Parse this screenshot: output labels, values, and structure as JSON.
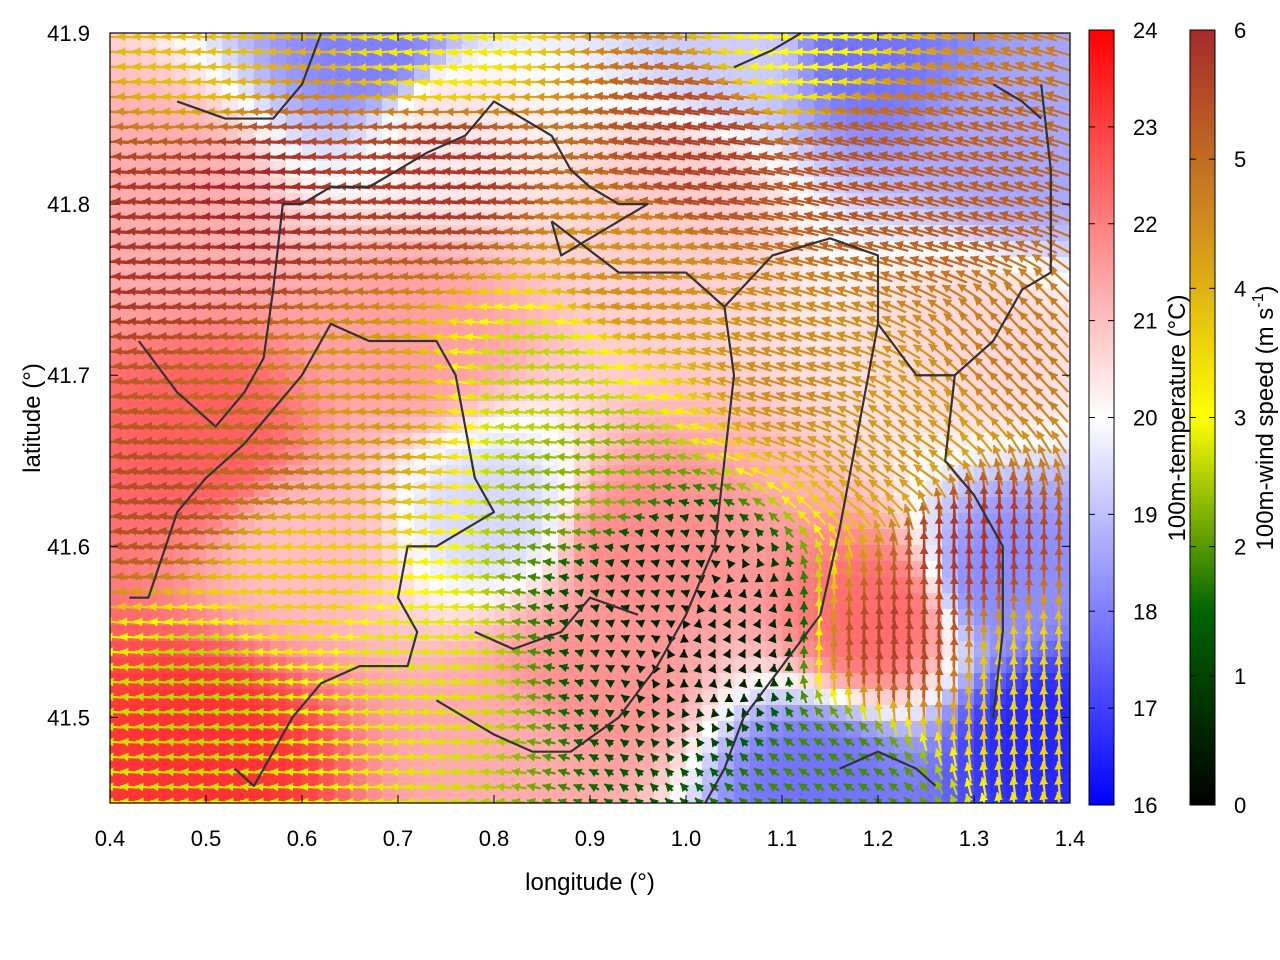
{
  "chart_data": {
    "type": "heatmap",
    "xlabel": "longitude (°)",
    "ylabel": "latitude (°)",
    "xlim": [
      0.4,
      1.4
    ],
    "ylim": [
      41.45,
      41.9
    ],
    "x_ticks": [
      "0.4",
      "0.5",
      "0.6",
      "0.7",
      "0.8",
      "0.9",
      "1.0",
      "1.1",
      "1.2",
      "1.3",
      "1.4"
    ],
    "y_ticks": [
      "41.5",
      "41.6",
      "41.7",
      "41.8",
      "41.9"
    ],
    "grid": false,
    "temperature_colorbar": {
      "label": "100m-temperature (°C)",
      "range": [
        16,
        24
      ],
      "ticks": [
        "16",
        "17",
        "18",
        "19",
        "20",
        "21",
        "22",
        "23",
        "24"
      ],
      "colors": [
        "#0000ff",
        "#ffffff",
        "#ff0000"
      ]
    },
    "wind_colorbar": {
      "label": "100m-wind speed (m s",
      "unit_sup": "-1",
      "label_end": ")",
      "range": [
        0,
        6
      ],
      "ticks": [
        "0",
        "1",
        "2",
        "3",
        "4",
        "5",
        "6"
      ],
      "colors": [
        "#000000",
        "#006400",
        "#ffff00",
        "#d08c1e",
        "#a52a2a"
      ]
    },
    "temperature_regions": [
      {
        "lon": 0.5,
        "lat": 41.66,
        "temp": 22.5
      },
      {
        "lon": 0.5,
        "lat": 41.48,
        "temp": 23.2
      },
      {
        "lon": 0.95,
        "lat": 41.6,
        "temp": 21.8
      },
      {
        "lon": 1.2,
        "lat": 41.56,
        "temp": 22.3
      },
      {
        "lon": 0.6,
        "lat": 41.6,
        "temp": 21.0
      },
      {
        "lon": 0.72,
        "lat": 41.72,
        "temp": 21.5
      },
      {
        "lon": 0.75,
        "lat": 41.85,
        "temp": 20.4
      },
      {
        "lon": 0.68,
        "lat": 41.89,
        "temp": 18.0
      },
      {
        "lon": 1.0,
        "lat": 41.8,
        "temp": 20.8
      },
      {
        "lon": 1.06,
        "lat": 41.89,
        "temp": 19.2
      },
      {
        "lon": 1.18,
        "lat": 41.89,
        "temp": 17.8
      },
      {
        "lon": 1.35,
        "lat": 41.83,
        "temp": 18.6
      },
      {
        "lon": 1.33,
        "lat": 41.58,
        "temp": 18.2
      },
      {
        "lon": 1.38,
        "lat": 41.49,
        "temp": 16.6
      },
      {
        "lon": 1.14,
        "lat": 41.46,
        "temp": 17.8
      },
      {
        "lon": 0.8,
        "lat": 41.62,
        "temp": 19.4
      },
      {
        "lon": 0.9,
        "lat": 41.52,
        "temp": 21.7
      },
      {
        "lon": 0.82,
        "lat": 41.48,
        "temp": 21.3
      },
      {
        "lon": 1.3,
        "lat": 41.72,
        "temp": 20.6
      },
      {
        "lon": 0.45,
        "lat": 41.8,
        "temp": 21.3
      }
    ],
    "wind_regions": [
      {
        "lon": 0.45,
        "lat": 41.78,
        "u": -5.8,
        "v": 0.4
      },
      {
        "lon": 0.55,
        "lat": 41.8,
        "u": -6.0,
        "v": 0.3
      },
      {
        "lon": 0.75,
        "lat": 41.82,
        "u": -5.8,
        "v": 0.5
      },
      {
        "lon": 1.02,
        "lat": 41.83,
        "u": -5.6,
        "v": 0.9
      },
      {
        "lon": 1.18,
        "lat": 41.82,
        "u": -5.2,
        "v": 1.2
      },
      {
        "lon": 1.3,
        "lat": 41.8,
        "u": -5.0,
        "v": 1.4
      },
      {
        "lon": 1.36,
        "lat": 41.72,
        "u": -3.2,
        "v": 3.5
      },
      {
        "lon": 1.3,
        "lat": 41.6,
        "u": 0.2,
        "v": 5.8
      },
      {
        "lon": 1.22,
        "lat": 41.54,
        "u": 0.3,
        "v": 5.6
      },
      {
        "lon": 1.36,
        "lat": 41.52,
        "u": -0.3,
        "v": 3.5
      },
      {
        "lon": 0.45,
        "lat": 41.63,
        "u": -5.4,
        "v": 0.6
      },
      {
        "lon": 0.55,
        "lat": 41.66,
        "u": -5.0,
        "v": 0.7
      },
      {
        "lon": 0.65,
        "lat": 41.68,
        "u": -4.3,
        "v": 0.4
      },
      {
        "lon": 0.85,
        "lat": 41.7,
        "u": -2.6,
        "v": 0.3
      },
      {
        "lon": 0.9,
        "lat": 41.64,
        "u": -2.3,
        "v": 0.2
      },
      {
        "lon": 0.97,
        "lat": 41.58,
        "u": -0.6,
        "v": 0.2
      },
      {
        "lon": 1.05,
        "lat": 41.55,
        "u": 0.2,
        "v": 0.4
      },
      {
        "lon": 0.5,
        "lat": 41.52,
        "u": -2.6,
        "v": 0.2
      },
      {
        "lon": 0.7,
        "lat": 41.53,
        "u": -2.8,
        "v": 0.1
      },
      {
        "lon": 0.6,
        "lat": 41.58,
        "u": -3.6,
        "v": 0.3
      },
      {
        "lon": 1.16,
        "lat": 41.47,
        "u": -1.6,
        "v": 1.0
      },
      {
        "lon": 0.75,
        "lat": 41.89,
        "u": -3.2,
        "v": -0.4
      },
      {
        "lon": 0.5,
        "lat": 41.89,
        "u": -3.8,
        "v": 0.3
      },
      {
        "lon": 1.12,
        "lat": 41.89,
        "u": -3.0,
        "v": 0.2
      },
      {
        "lon": 0.95,
        "lat": 41.76,
        "u": -4.4,
        "v": 0.6
      },
      {
        "lon": 1.12,
        "lat": 41.7,
        "u": -4.3,
        "v": 1.3
      },
      {
        "lon": 1.22,
        "lat": 41.66,
        "u": -3.6,
        "v": 2.4
      }
    ],
    "coastline": [
      [
        [
          0.42,
          41.57
        ],
        [
          0.44,
          41.57
        ],
        [
          0.47,
          41.62
        ],
        [
          0.5,
          41.64
        ],
        [
          0.54,
          41.66
        ],
        [
          0.57,
          41.68
        ],
        [
          0.6,
          41.7
        ],
        [
          0.63,
          41.73
        ],
        [
          0.67,
          41.72
        ],
        [
          0.7,
          41.72
        ],
        [
          0.74,
          41.72
        ],
        [
          0.76,
          41.7
        ],
        [
          0.78,
          41.64
        ],
        [
          0.8,
          41.62
        ],
        [
          0.74,
          41.6
        ],
        [
          0.71,
          41.6
        ],
        [
          0.7,
          41.57
        ],
        [
          0.72,
          41.55
        ],
        [
          0.71,
          41.53
        ],
        [
          0.66,
          41.53
        ],
        [
          0.62,
          41.52
        ],
        [
          0.59,
          41.5
        ],
        [
          0.57,
          41.48
        ],
        [
          0.55,
          41.46
        ],
        [
          0.53,
          41.47
        ]
      ],
      [
        [
          0.43,
          41.72
        ],
        [
          0.47,
          41.69
        ],
        [
          0.51,
          41.67
        ],
        [
          0.54,
          41.69
        ],
        [
          0.56,
          41.71
        ],
        [
          0.57,
          41.75
        ],
        [
          0.58,
          41.8
        ],
        [
          0.6,
          41.8
        ],
        [
          0.63,
          41.81
        ],
        [
          0.67,
          41.81
        ],
        [
          0.7,
          41.82
        ],
        [
          0.73,
          41.83
        ],
        [
          0.77,
          41.84
        ],
        [
          0.8,
          41.86
        ],
        [
          0.83,
          41.85
        ],
        [
          0.86,
          41.84
        ],
        [
          0.88,
          41.82
        ],
        [
          0.9,
          41.81
        ],
        [
          0.93,
          41.8
        ],
        [
          0.96,
          41.8
        ],
        [
          0.9,
          41.78
        ],
        [
          0.87,
          41.77
        ],
        [
          0.86,
          41.79
        ]
      ],
      [
        [
          0.86,
          41.79
        ],
        [
          0.93,
          41.76
        ],
        [
          1.0,
          41.76
        ],
        [
          1.04,
          41.74
        ],
        [
          1.05,
          41.7
        ],
        [
          1.04,
          41.65
        ],
        [
          1.03,
          41.6
        ],
        [
          1.0,
          41.56
        ],
        [
          0.97,
          41.53
        ],
        [
          0.93,
          41.5
        ],
        [
          0.88,
          41.48
        ],
        [
          0.84,
          41.48
        ],
        [
          0.8,
          41.49
        ],
        [
          0.77,
          41.5
        ],
        [
          0.74,
          41.51
        ]
      ],
      [
        [
          1.04,
          41.74
        ],
        [
          1.09,
          41.77
        ],
        [
          1.15,
          41.78
        ],
        [
          1.2,
          41.77
        ],
        [
          1.2,
          41.73
        ],
        [
          1.18,
          41.67
        ],
        [
          1.16,
          41.61
        ],
        [
          1.14,
          41.56
        ],
        [
          1.1,
          41.53
        ],
        [
          1.06,
          41.5
        ],
        [
          1.04,
          41.47
        ],
        [
          1.02,
          41.45
        ]
      ],
      [
        [
          1.2,
          41.73
        ],
        [
          1.24,
          41.7
        ],
        [
          1.28,
          41.7
        ],
        [
          1.32,
          41.72
        ],
        [
          1.35,
          41.75
        ],
        [
          1.38,
          41.76
        ],
        [
          1.38,
          41.82
        ],
        [
          1.37,
          41.87
        ]
      ],
      [
        [
          1.28,
          41.7
        ],
        [
          1.27,
          41.65
        ],
        [
          1.3,
          41.63
        ],
        [
          1.33,
          41.6
        ],
        [
          1.33,
          41.55
        ],
        [
          1.32,
          41.5
        ]
      ],
      [
        [
          0.78,
          41.55
        ],
        [
          0.82,
          41.54
        ],
        [
          0.87,
          41.55
        ],
        [
          0.9,
          41.57
        ],
        [
          0.95,
          41.56
        ]
      ],
      [
        [
          1.16,
          41.47
        ],
        [
          1.2,
          41.48
        ],
        [
          1.24,
          41.47
        ],
        [
          1.26,
          41.46
        ]
      ],
      [
        [
          0.47,
          41.86
        ],
        [
          0.52,
          41.85
        ],
        [
          0.57,
          41.85
        ],
        [
          0.6,
          41.87
        ],
        [
          0.62,
          41.9
        ]
      ],
      [
        [
          1.32,
          41.87
        ],
        [
          1.35,
          41.86
        ],
        [
          1.37,
          41.85
        ]
      ],
      [
        [
          1.05,
          41.88
        ],
        [
          1.09,
          41.89
        ],
        [
          1.12,
          41.9
        ]
      ]
    ]
  }
}
